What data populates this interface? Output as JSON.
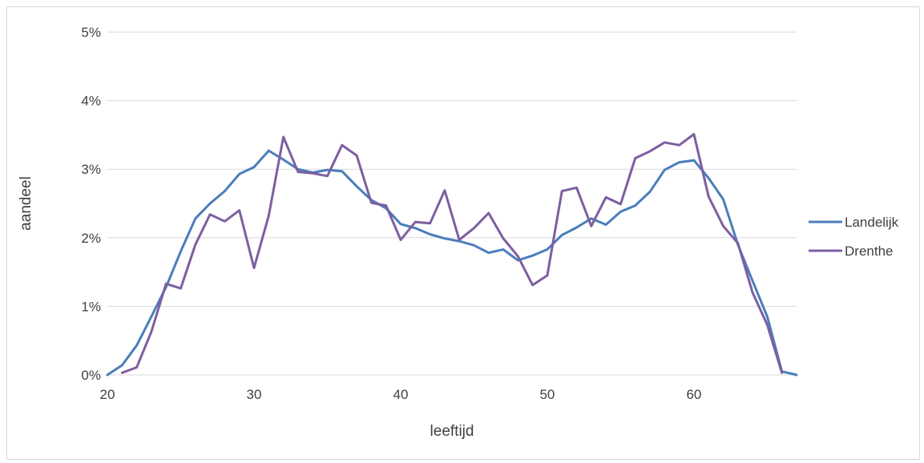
{
  "chart_data": {
    "type": "line",
    "title": "",
    "xlabel": "leeftijd",
    "ylabel": "aandeel",
    "xlim": [
      20,
      67
    ],
    "ylim": [
      0,
      5
    ],
    "xticks": [
      20,
      30,
      40,
      50,
      60
    ],
    "xtick_labels": [
      "20",
      "30",
      "40",
      "50",
      "60"
    ],
    "yticks": [
      0,
      1,
      2,
      3,
      4,
      5
    ],
    "ytick_labels": [
      "0%",
      "1%",
      "2%",
      "3%",
      "4%",
      "5%"
    ],
    "grid": true,
    "legend_position": "right",
    "series": [
      {
        "name": "Landelijk",
        "color": "#4a7ebb",
        "x": [
          20,
          21,
          22,
          23,
          24,
          25,
          26,
          27,
          28,
          29,
          30,
          31,
          32,
          33,
          34,
          35,
          36,
          37,
          38,
          39,
          40,
          41,
          42,
          43,
          44,
          45,
          46,
          47,
          48,
          49,
          50,
          51,
          52,
          53,
          54,
          55,
          56,
          57,
          58,
          59,
          60,
          61,
          62,
          63,
          64,
          65,
          66,
          67
        ],
        "values": [
          0.0,
          0.14,
          0.43,
          0.85,
          1.28,
          1.8,
          2.28,
          2.5,
          2.68,
          2.93,
          3.03,
          3.27,
          3.14,
          3.0,
          2.95,
          2.99,
          2.97,
          2.75,
          2.55,
          2.43,
          2.2,
          2.14,
          2.05,
          1.99,
          1.95,
          1.89,
          1.78,
          1.83,
          1.67,
          1.74,
          1.83,
          2.04,
          2.15,
          2.28,
          2.19,
          2.38,
          2.47,
          2.67,
          2.99,
          3.1,
          3.13,
          2.87,
          2.56,
          1.9,
          1.37,
          0.85,
          0.05,
          0.0
        ]
      },
      {
        "name": "Drenthe",
        "color": "#7d5fa0",
        "x": [
          21,
          22,
          23,
          24,
          25,
          26,
          27,
          28,
          29,
          30,
          31,
          32,
          33,
          34,
          35,
          36,
          37,
          38,
          39,
          40,
          41,
          42,
          43,
          44,
          45,
          46,
          47,
          48,
          49,
          50,
          51,
          52,
          53,
          54,
          55,
          56,
          57,
          58,
          59,
          60,
          61,
          62,
          63,
          64,
          65,
          66
        ],
        "values": [
          0.03,
          0.11,
          0.63,
          1.33,
          1.26,
          1.9,
          2.34,
          2.24,
          2.4,
          1.56,
          2.32,
          3.47,
          2.96,
          2.94,
          2.9,
          3.35,
          3.2,
          2.51,
          2.47,
          1.97,
          2.23,
          2.21,
          2.69,
          1.97,
          2.14,
          2.36,
          1.99,
          1.73,
          1.31,
          1.45,
          2.68,
          2.73,
          2.17,
          2.59,
          2.49,
          3.16,
          3.26,
          3.39,
          3.35,
          3.51,
          2.6,
          2.17,
          1.92,
          1.2,
          0.73,
          0.03
        ]
      }
    ]
  }
}
